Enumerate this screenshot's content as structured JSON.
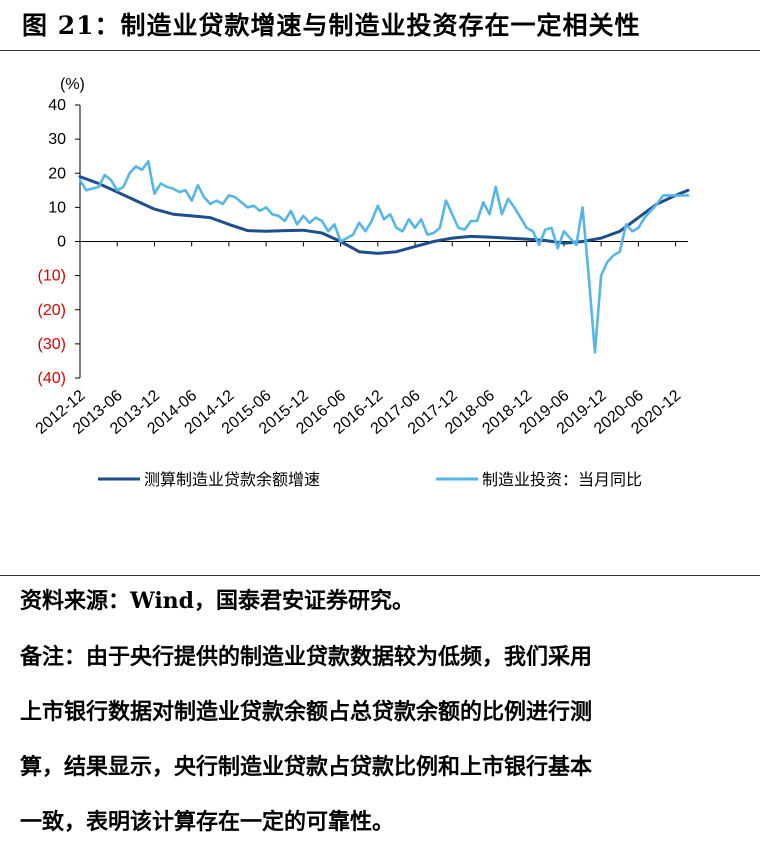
{
  "figure": {
    "title": "图 21：制造业贷款增速与制造业投资存在一定相关性"
  },
  "source": "资料来源：Wind，国泰君安证券研究。",
  "notes": [
    "备注：由于央行提供的制造业贷款数据较为低频，我们采用",
    "上市银行数据对制造业贷款余额占总贷款余额的比例进行测",
    "算，结果显示，央行制造业贷款占贷款比例和上市银行基本",
    "一致，表明该计算存在一定的可靠性。"
  ],
  "chart_data": {
    "type": "line",
    "unit_label": "(%)",
    "ylim": [
      -40,
      40
    ],
    "yticks": [
      40,
      30,
      20,
      10,
      0,
      -10,
      -20,
      -30,
      -40
    ],
    "ytick_labels": [
      "40",
      "30",
      "20",
      "10",
      "0",
      "(10)",
      "(20)",
      "(30)",
      "(40)"
    ],
    "negative_tick_color": "#e00000",
    "x_range": [
      "2012-12",
      "2021-02"
    ],
    "xtick_labels": [
      "2012-12",
      "2013-06",
      "2013-12",
      "2014-06",
      "2014-12",
      "2015-06",
      "2015-12",
      "2016-06",
      "2016-12",
      "2017-06",
      "2017-12",
      "2018-06",
      "2018-12",
      "2019-06",
      "2019-12",
      "2020-06",
      "2020-12"
    ],
    "grid": false,
    "legend_position": "bottom",
    "series": [
      {
        "name": "测算制造业贷款余额增速",
        "color": "#1f4e8c",
        "points": [
          [
            "2012-12",
            19
          ],
          [
            "2013-03",
            17
          ],
          [
            "2013-06",
            14.5
          ],
          [
            "2013-09",
            12
          ],
          [
            "2013-12",
            9.5
          ],
          [
            "2014-03",
            8
          ],
          [
            "2014-06",
            7.5
          ],
          [
            "2014-09",
            7
          ],
          [
            "2014-12",
            5
          ],
          [
            "2015-03",
            3.2
          ],
          [
            "2015-06",
            3
          ],
          [
            "2015-09",
            3.2
          ],
          [
            "2015-12",
            3.3
          ],
          [
            "2016-03",
            2.5
          ],
          [
            "2016-06",
            0
          ],
          [
            "2016-09",
            -3
          ],
          [
            "2016-12",
            -3.5
          ],
          [
            "2017-03",
            -3
          ],
          [
            "2017-06",
            -1.5
          ],
          [
            "2017-09",
            0
          ],
          [
            "2017-12",
            1
          ],
          [
            "2018-03",
            1.5
          ],
          [
            "2018-06",
            1.3
          ],
          [
            "2018-09",
            1
          ],
          [
            "2018-12",
            0.7
          ],
          [
            "2019-03",
            0.3
          ],
          [
            "2019-06",
            -0.5
          ],
          [
            "2019-09",
            0
          ],
          [
            "2019-12",
            1
          ],
          [
            "2020-03",
            3
          ],
          [
            "2020-06",
            7
          ],
          [
            "2020-09",
            11
          ],
          [
            "2020-12",
            13.5
          ],
          [
            "2021-02",
            15
          ]
        ]
      },
      {
        "name": "制造业投资：当月同比",
        "color": "#55b6e8",
        "points": [
          [
            "2012-12",
            18
          ],
          [
            "2013-01",
            15
          ],
          [
            "2013-03",
            16
          ],
          [
            "2013-04",
            19.5
          ],
          [
            "2013-05",
            18
          ],
          [
            "2013-06",
            15
          ],
          [
            "2013-07",
            16
          ],
          [
            "2013-08",
            20
          ],
          [
            "2013-09",
            22
          ],
          [
            "2013-10",
            21
          ],
          [
            "2013-11",
            23.5
          ],
          [
            "2013-12",
            14
          ],
          [
            "2014-01",
            17
          ],
          [
            "2014-02",
            16
          ],
          [
            "2014-03",
            15.5
          ],
          [
            "2014-04",
            14.5
          ],
          [
            "2014-05",
            15
          ],
          [
            "2014-06",
            12
          ],
          [
            "2014-07",
            16.5
          ],
          [
            "2014-08",
            13
          ],
          [
            "2014-09",
            11
          ],
          [
            "2014-10",
            12
          ],
          [
            "2014-11",
            11
          ],
          [
            "2014-12",
            13.5
          ],
          [
            "2015-01",
            13
          ],
          [
            "2015-02",
            11.5
          ],
          [
            "2015-03",
            10
          ],
          [
            "2015-04",
            10.5
          ],
          [
            "2015-05",
            9
          ],
          [
            "2015-06",
            10
          ],
          [
            "2015-07",
            8
          ],
          [
            "2015-08",
            7.5
          ],
          [
            "2015-09",
            6
          ],
          [
            "2015-10",
            9
          ],
          [
            "2015-11",
            5
          ],
          [
            "2015-12",
            7.5
          ],
          [
            "2016-01",
            5.5
          ],
          [
            "2016-02",
            7
          ],
          [
            "2016-03",
            6
          ],
          [
            "2016-04",
            3
          ],
          [
            "2016-05",
            5
          ],
          [
            "2016-06",
            0
          ],
          [
            "2016-07",
            1
          ],
          [
            "2016-08",
            2
          ],
          [
            "2016-09",
            5.5
          ],
          [
            "2016-10",
            3
          ],
          [
            "2016-11",
            6
          ],
          [
            "2016-12",
            10.5
          ],
          [
            "2017-01",
            6.5
          ],
          [
            "2017-02",
            8
          ],
          [
            "2017-03",
            4
          ],
          [
            "2017-04",
            3
          ],
          [
            "2017-05",
            6.5
          ],
          [
            "2017-06",
            4
          ],
          [
            "2017-07",
            6.5
          ],
          [
            "2017-08",
            2
          ],
          [
            "2017-09",
            2.5
          ],
          [
            "2017-10",
            4
          ],
          [
            "2017-11",
            12
          ],
          [
            "2017-12",
            8
          ],
          [
            "2018-01",
            4
          ],
          [
            "2018-02",
            3.5
          ],
          [
            "2018-03",
            6
          ],
          [
            "2018-04",
            6
          ],
          [
            "2018-05",
            11.5
          ],
          [
            "2018-06",
            8
          ],
          [
            "2018-07",
            16
          ],
          [
            "2018-08",
            8
          ],
          [
            "2018-09",
            12.5
          ],
          [
            "2018-10",
            10
          ],
          [
            "2018-11",
            7
          ],
          [
            "2018-12",
            4
          ],
          [
            "2019-01",
            3
          ],
          [
            "2019-02",
            -1
          ],
          [
            "2019-03",
            3.5
          ],
          [
            "2019-04",
            4
          ],
          [
            "2019-05",
            -2
          ],
          [
            "2019-06",
            3
          ],
          [
            "2019-07",
            1
          ],
          [
            "2019-08",
            -1
          ],
          [
            "2019-09",
            10
          ],
          [
            "2019-10",
            -10
          ],
          [
            "2019-11",
            -32.5
          ],
          [
            "2019-12",
            -10
          ],
          [
            "2020-01",
            -6
          ],
          [
            "2020-02",
            -4
          ],
          [
            "2020-03",
            -3
          ],
          [
            "2020-04",
            5
          ],
          [
            "2020-05",
            3
          ],
          [
            "2020-06",
            4
          ],
          [
            "2020-07",
            7
          ],
          [
            "2020-08",
            9
          ],
          [
            "2020-09",
            11
          ],
          [
            "2020-10",
            13.5
          ],
          [
            "2021-02",
            13.5
          ]
        ]
      }
    ]
  }
}
